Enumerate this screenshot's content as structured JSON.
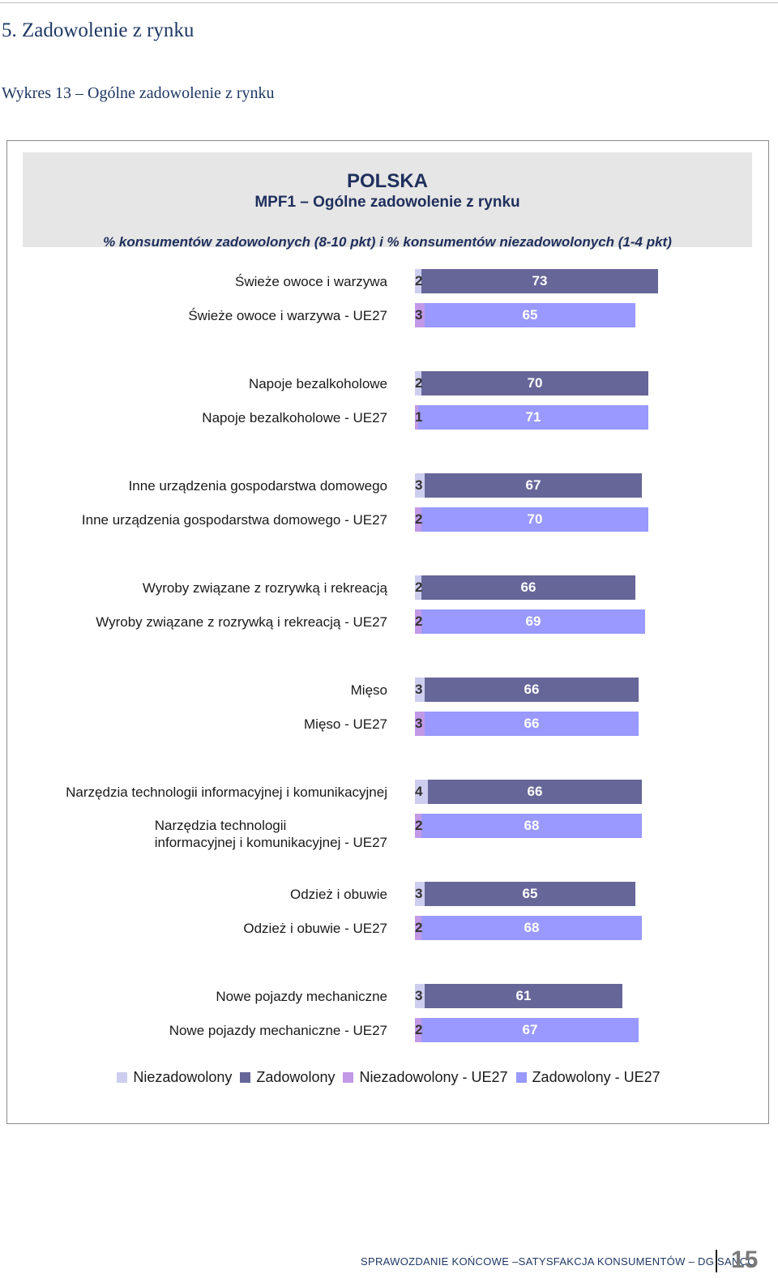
{
  "section_title": "5. Zadowolenie z rynku",
  "figure_title": "Wykres 13 – Ogólne zadowolenie z rynku",
  "footer": {
    "text": "Sprawozdanie końcowe –satysfakcja konsumentów – DG SANCO",
    "page_number": "15"
  },
  "colors": {
    "niezadowolony": "#cdcdf0",
    "zadowolony": "#666699",
    "niezadowolony_ue27": "#c299e6",
    "zadowolony_ue27": "#9999ff",
    "header_bg": "#e6e6e6"
  },
  "chart_data": {
    "type": "bar",
    "orientation": "horizontal",
    "stacked": true,
    "title": "POLSKA",
    "subtitle": "MPF1 – Ogólne zadowolenie z rynku",
    "note": "% konsumentów zadowolonych (8-10 pkt) i % konsumentów niezadowolonych (1-4 pkt)",
    "categories": [
      "Świeże owoce i warzywa",
      "Świeże owoce i warzywa - UE27",
      "Napoje bezalkoholowe",
      "Napoje bezalkoholowe - UE27",
      "Inne urządzenia gospodarstwa domowego",
      "Inne urządzenia gospodarstwa domowego - UE27",
      "Wyroby związane z rozrywką i rekreacją",
      "Wyroby związane z rozrywką i rekreacją - UE27",
      "Mięso",
      "Mięso - UE27",
      "Narzędzia technologii informacyjnej i komunikacyjnej",
      "Narzędzia technologii\ninformacyjnej i komunikacyjnej - UE27",
      "Odzież i obuwie",
      "Odzież i obuwie - UE27",
      "Nowe pojazdy mechaniczne",
      "Nowe pojazdy mechaniczne - UE27"
    ],
    "rows": [
      {
        "dissatisfied": 2,
        "satisfied": 73,
        "ue27": false
      },
      {
        "dissatisfied": 3,
        "satisfied": 65,
        "ue27": true
      },
      {
        "dissatisfied": 2,
        "satisfied": 70,
        "ue27": false
      },
      {
        "dissatisfied": 1,
        "satisfied": 71,
        "ue27": true
      },
      {
        "dissatisfied": 3,
        "satisfied": 67,
        "ue27": false
      },
      {
        "dissatisfied": 2,
        "satisfied": 70,
        "ue27": true
      },
      {
        "dissatisfied": 2,
        "satisfied": 66,
        "ue27": false
      },
      {
        "dissatisfied": 2,
        "satisfied": 69,
        "ue27": true
      },
      {
        "dissatisfied": 3,
        "satisfied": 66,
        "ue27": false
      },
      {
        "dissatisfied": 3,
        "satisfied": 66,
        "ue27": true
      },
      {
        "dissatisfied": 4,
        "satisfied": 66,
        "ue27": false
      },
      {
        "dissatisfied": 2,
        "satisfied": 68,
        "ue27": true
      },
      {
        "dissatisfied": 3,
        "satisfied": 65,
        "ue27": false
      },
      {
        "dissatisfied": 2,
        "satisfied": 68,
        "ue27": true
      },
      {
        "dissatisfied": 3,
        "satisfied": 61,
        "ue27": false
      },
      {
        "dissatisfied": 2,
        "satisfied": 67,
        "ue27": true
      }
    ],
    "legend": [
      {
        "label": "Niezadowolony",
        "color": "#cdcdf0"
      },
      {
        "label": "Zadowolony",
        "color": "#666699"
      },
      {
        "label": "Niezadowolony - UE27",
        "color": "#c299e6"
      },
      {
        "label": "Zadowolony - UE27",
        "color": "#9999ff"
      }
    ],
    "legend_position": "bottom",
    "xlim": [
      0,
      100
    ],
    "grid": false
  }
}
